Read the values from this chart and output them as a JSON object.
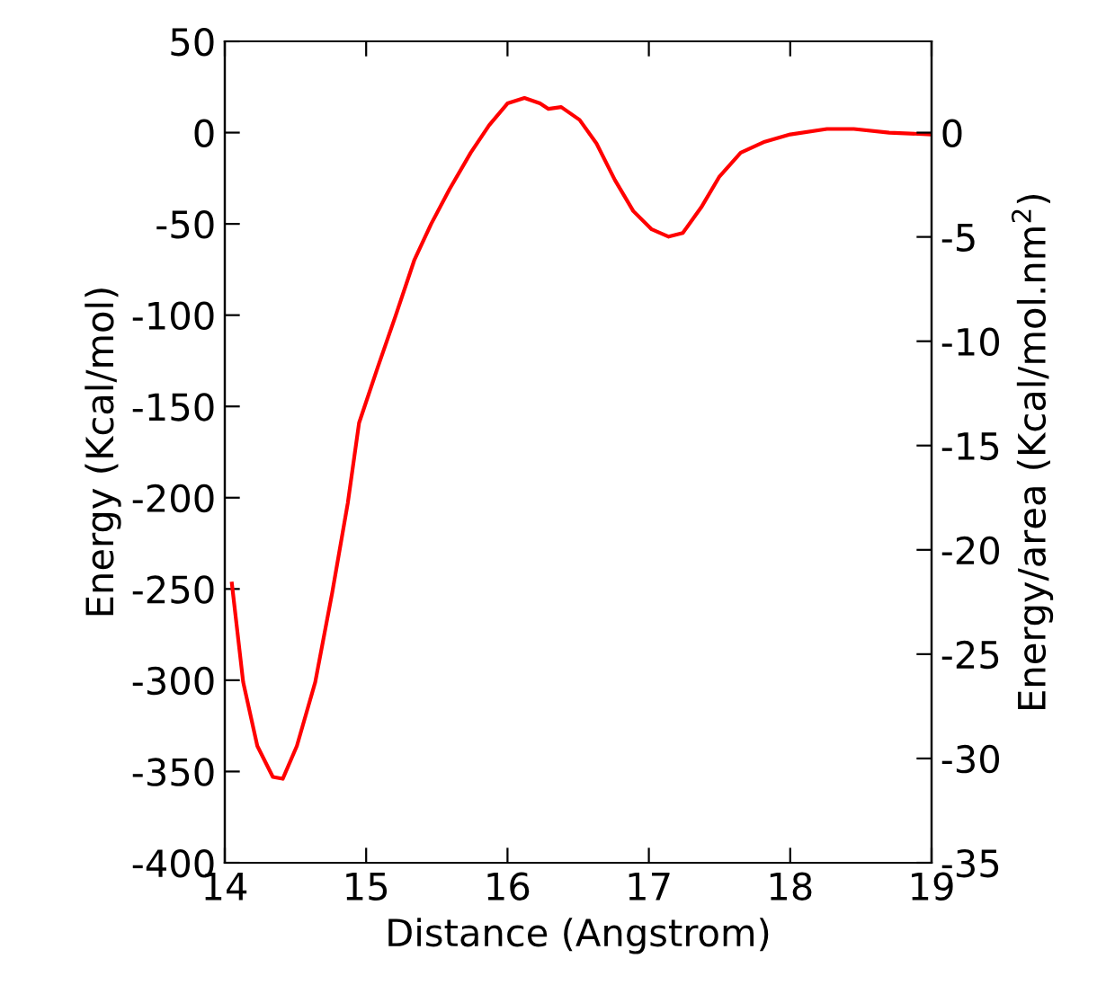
{
  "chart_data": {
    "type": "line",
    "xlabel": "Distance (Angstrom)",
    "ylabel": "Energy (Kcal/mol)",
    "y2label": "Energy/area (Kcal/mol.nm$^{2}$)",
    "xlim": [
      14,
      19
    ],
    "xticks": [
      14,
      15,
      16,
      17,
      18,
      19
    ],
    "ylim": [
      -400,
      50
    ],
    "yticks": [
      -400,
      -350,
      -300,
      -250,
      -200,
      -150,
      -100,
      -50,
      0,
      50
    ],
    "y2lim": [
      -35,
      4.375
    ],
    "y2ticks": [
      {
        "value": 0,
        "label": "0"
      },
      {
        "value": -5,
        "label": "-5"
      },
      {
        "value": -10,
        "label": "-10"
      },
      {
        "value": -15,
        "label": "-15"
      },
      {
        "value": -20,
        "label": "-20"
      },
      {
        "value": -25,
        "label": "-25"
      },
      {
        "value": -30,
        "label": "-30"
      },
      {
        "value": -35,
        "label": "-35"
      }
    ],
    "grid": false,
    "legend": false,
    "marker": "none",
    "line_style": "solid",
    "series": [
      {
        "color": "#ff0000",
        "x": [
          14.05,
          14.13,
          14.23,
          14.34,
          14.41,
          14.51,
          14.64,
          14.76,
          14.87,
          14.95,
          15.08,
          15.21,
          15.34,
          15.46,
          15.59,
          15.74,
          15.87,
          16.0,
          16.12,
          16.23,
          16.29,
          16.38,
          16.51,
          16.63,
          16.76,
          16.89,
          17.02,
          17.14,
          17.24,
          17.37,
          17.5,
          17.65,
          17.82,
          18.0,
          18.26,
          18.45,
          18.7,
          19.0
        ],
        "values": [
          -247,
          -301,
          -336,
          -353,
          -354,
          -336,
          -301,
          -252,
          -203,
          -159,
          -129,
          -100,
          -70,
          -50,
          -31,
          -11,
          4,
          16,
          19,
          16,
          13,
          14,
          7,
          -6,
          -26,
          -43,
          -53,
          -57,
          -55,
          -41,
          -24,
          -11,
          -5,
          -1,
          2,
          2,
          0,
          -1
        ]
      }
    ]
  }
}
